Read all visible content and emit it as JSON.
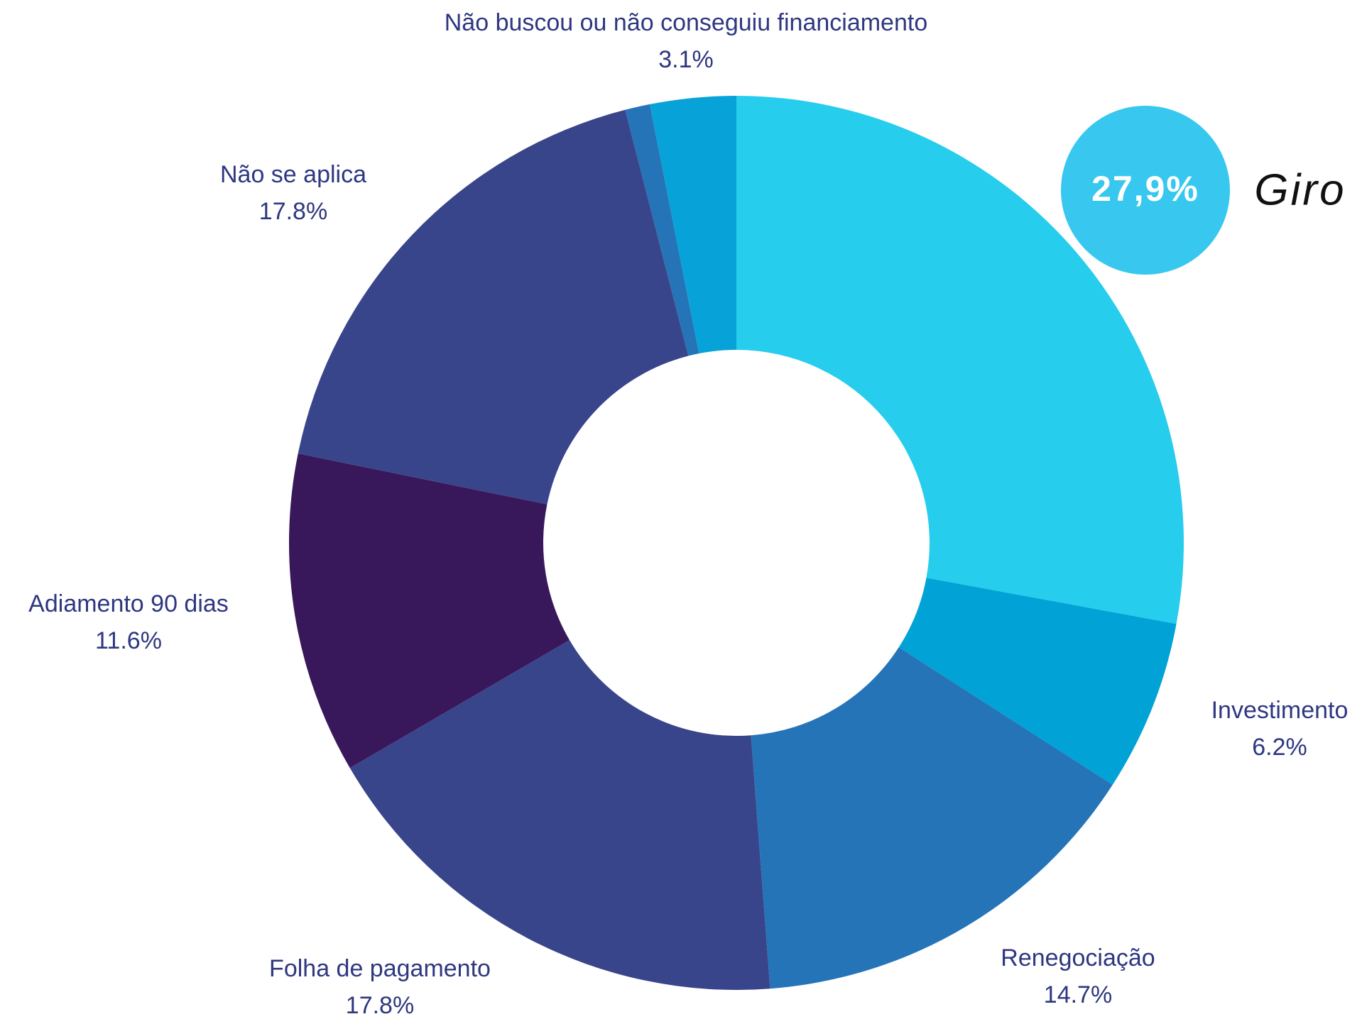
{
  "chart_data": {
    "type": "donut",
    "categories": [
      "Giro",
      "Investimento",
      "Renegociação",
      "Folha de pagamento",
      "Adiamento 90 dias",
      "Não se aplica",
      null,
      "Não buscou ou não conseguiu financiamento"
    ],
    "values": [
      27.9,
      6.2,
      14.7,
      17.8,
      11.6,
      17.8,
      0.9,
      3.1
    ],
    "value_labels": [
      "27,9%",
      "6.2%",
      "14.7%",
      "17.8%",
      "11.6%",
      "17.8%",
      null,
      "3.1%"
    ],
    "colors": [
      "#26cdec",
      "#01a3d6",
      "#2574b8",
      "#38458a",
      "#38185a",
      "#38458a",
      "#2574b8",
      "#07a3d8"
    ]
  }
}
